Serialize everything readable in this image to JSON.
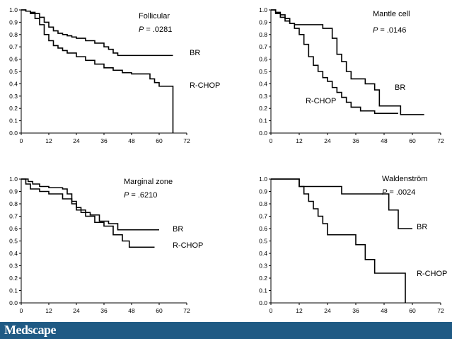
{
  "footer": {
    "brand": "Medscape",
    "bar_color": "#1f5a84"
  },
  "chart_data": [
    {
      "type": "line",
      "panel": "Follicular",
      "title": "Follicular",
      "pvalue": "P = .0281",
      "xticks": [
        0,
        12,
        24,
        36,
        48,
        60,
        72
      ],
      "yticks": [
        "0.0",
        "0.1",
        "0.2",
        "0.3",
        "0.4",
        "0.5",
        "0.6",
        "0.7",
        "0.8",
        "0.9",
        "1.0"
      ],
      "xlim": [
        0,
        72
      ],
      "ylim": [
        0,
        1
      ],
      "series": [
        {
          "name": "BR",
          "x": [
            0,
            2,
            4,
            6,
            8,
            10,
            12,
            14,
            16,
            18,
            20,
            22,
            24,
            28,
            32,
            36,
            38,
            40,
            42,
            66
          ],
          "y": [
            1.0,
            0.99,
            0.98,
            0.97,
            0.94,
            0.9,
            0.86,
            0.83,
            0.81,
            0.8,
            0.79,
            0.78,
            0.77,
            0.75,
            0.73,
            0.7,
            0.68,
            0.65,
            0.63,
            0.63
          ]
        },
        {
          "name": "R-CHOP",
          "x": [
            0,
            2,
            4,
            6,
            8,
            10,
            12,
            14,
            16,
            18,
            20,
            24,
            28,
            32,
            36,
            40,
            44,
            48,
            56,
            58,
            60,
            65,
            66
          ],
          "y": [
            1.0,
            0.99,
            0.97,
            0.93,
            0.88,
            0.8,
            0.75,
            0.71,
            0.69,
            0.67,
            0.65,
            0.62,
            0.59,
            0.56,
            0.53,
            0.51,
            0.49,
            0.48,
            0.44,
            0.41,
            0.38,
            0.38,
            0.0
          ]
        }
      ],
      "labels": [
        "BR",
        "R-CHOP"
      ]
    },
    {
      "type": "line",
      "panel": "Mantle cell",
      "title": "Mantle cell",
      "pvalue": "P = .0146",
      "xticks": [
        0,
        12,
        24,
        36,
        48,
        60,
        72
      ],
      "yticks": [
        "0.0",
        "0.1",
        "0.2",
        "0.3",
        "0.4",
        "0.5",
        "0.6",
        "0.7",
        "0.8",
        "0.9",
        "1.0"
      ],
      "xlim": [
        0,
        72
      ],
      "ylim": [
        0,
        1
      ],
      "series": [
        {
          "name": "BR",
          "x": [
            0,
            2,
            4,
            6,
            8,
            10,
            12,
            18,
            22,
            26,
            28,
            30,
            32,
            34,
            36,
            40,
            44,
            46,
            54,
            55,
            65
          ],
          "y": [
            1.0,
            0.97,
            0.94,
            0.91,
            0.89,
            0.88,
            0.88,
            0.88,
            0.85,
            0.77,
            0.64,
            0.58,
            0.5,
            0.44,
            0.44,
            0.4,
            0.35,
            0.22,
            0.22,
            0.15,
            0.15
          ]
        },
        {
          "name": "R-CHOP",
          "x": [
            0,
            2,
            4,
            6,
            8,
            10,
            12,
            14,
            16,
            18,
            20,
            22,
            24,
            26,
            28,
            30,
            32,
            34,
            38,
            44,
            54
          ],
          "y": [
            1.0,
            0.98,
            0.96,
            0.93,
            0.89,
            0.85,
            0.8,
            0.72,
            0.62,
            0.55,
            0.5,
            0.45,
            0.42,
            0.37,
            0.33,
            0.29,
            0.25,
            0.21,
            0.18,
            0.16,
            0.16
          ]
        }
      ],
      "labels": [
        "BR",
        "R-CHOP"
      ]
    },
    {
      "type": "line",
      "panel": "Marginal zone",
      "title": "Marginal zone",
      "pvalue": "P = .6210",
      "xticks": [
        0,
        12,
        24,
        36,
        48,
        60,
        72
      ],
      "yticks": [
        "0.0",
        "0.1",
        "0.2",
        "0.3",
        "0.4",
        "0.5",
        "0.6",
        "0.7",
        "0.8",
        "0.9",
        "1.0"
      ],
      "xlim": [
        0,
        72
      ],
      "ylim": [
        0,
        1
      ],
      "series": [
        {
          "name": "BR",
          "x": [
            0,
            3,
            5,
            8,
            12,
            18,
            20,
            22,
            24,
            26,
            30,
            34,
            38,
            42,
            60
          ],
          "y": [
            1.0,
            0.98,
            0.96,
            0.94,
            0.93,
            0.92,
            0.88,
            0.82,
            0.77,
            0.73,
            0.71,
            0.66,
            0.64,
            0.59,
            0.59
          ]
        },
        {
          "name": "R-CHOP",
          "x": [
            0,
            2,
            4,
            8,
            12,
            18,
            22,
            24,
            28,
            32,
            36,
            40,
            44,
            47,
            58
          ],
          "y": [
            1.0,
            0.96,
            0.92,
            0.9,
            0.88,
            0.84,
            0.8,
            0.75,
            0.7,
            0.65,
            0.62,
            0.55,
            0.5,
            0.45,
            0.45
          ]
        }
      ],
      "labels": [
        "BR",
        "R-CHOP"
      ]
    },
    {
      "type": "line",
      "panel": "Waldenström",
      "title": "Waldenström",
      "pvalue": "P = .0024",
      "xticks": [
        0,
        12,
        24,
        36,
        48,
        60,
        72
      ],
      "yticks": [
        "0.0",
        "0.1",
        "0.2",
        "0.3",
        "0.4",
        "0.5",
        "0.6",
        "0.7",
        "0.8",
        "0.9",
        "1.0"
      ],
      "xlim": [
        0,
        72
      ],
      "ylim": [
        0,
        1
      ],
      "series": [
        {
          "name": "BR",
          "x": [
            0,
            10,
            12,
            30,
            50,
            52,
            54,
            60
          ],
          "y": [
            1.0,
            1.0,
            0.94,
            0.88,
            0.75,
            0.75,
            0.6,
            0.6
          ]
        },
        {
          "name": "R-CHOP",
          "x": [
            0,
            10,
            12,
            14,
            16,
            18,
            20,
            22,
            24,
            36,
            40,
            42,
            44,
            56,
            57
          ],
          "y": [
            1.0,
            1.0,
            0.94,
            0.88,
            0.82,
            0.76,
            0.7,
            0.64,
            0.55,
            0.47,
            0.35,
            0.35,
            0.24,
            0.24,
            0.0
          ]
        }
      ],
      "labels": [
        "BR",
        "R-CHOP"
      ]
    }
  ]
}
